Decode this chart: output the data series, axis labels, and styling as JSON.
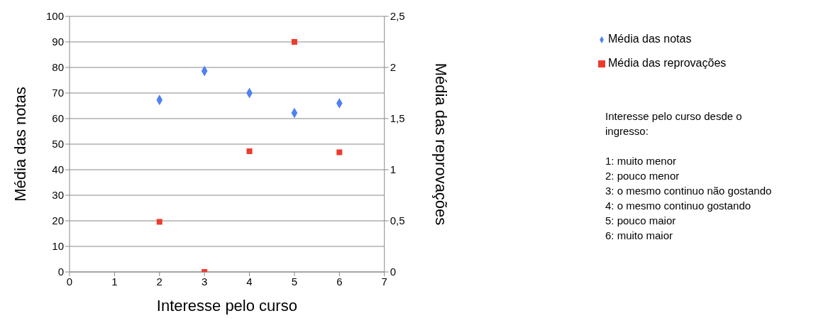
{
  "chart_data": {
    "type": "scatter",
    "xlabel": "Interesse pelo curso",
    "ylabel": "Média das notas",
    "y2label": "Média das reprovações",
    "x": [
      2,
      3,
      4,
      5,
      6
    ],
    "series": [
      {
        "name": "Média das notas",
        "color": "#4f81f0",
        "marker": "diamond",
        "values": [
          67.3,
          78.6,
          70,
          62.2,
          66
        ]
      },
      {
        "name": "Média das reprovações",
        "color": "#ee3b2f",
        "marker": "square",
        "axis": "y2",
        "values": [
          0.49,
          0,
          1.18,
          2.25,
          1.17
        ]
      }
    ],
    "xlim": [
      0,
      7
    ],
    "xticks": [
      0,
      1,
      2,
      3,
      4,
      5,
      6,
      7
    ],
    "ylim": [
      0,
      100
    ],
    "yticks": [
      0,
      10,
      20,
      30,
      40,
      50,
      60,
      70,
      80,
      90,
      100
    ],
    "y2lim": [
      0,
      2.5
    ],
    "y2ticks": [
      0,
      {
        "value": 0.5,
        "label": "0,5"
      },
      1,
      {
        "value": 1.5,
        "label": "1,5"
      },
      2,
      {
        "value": 2.5,
        "label": "2,5"
      }
    ],
    "grid": "y",
    "legend": "top right",
    "annotations": [
      "Interesse pelo curso desde o ingresso:",
      "1: muito menor",
      "2: pouco menor",
      "3: o mesmo continuo não gostando",
      "4: o mesmo continuo gostando",
      "5: pouco maior",
      "6: muito maior"
    ]
  }
}
